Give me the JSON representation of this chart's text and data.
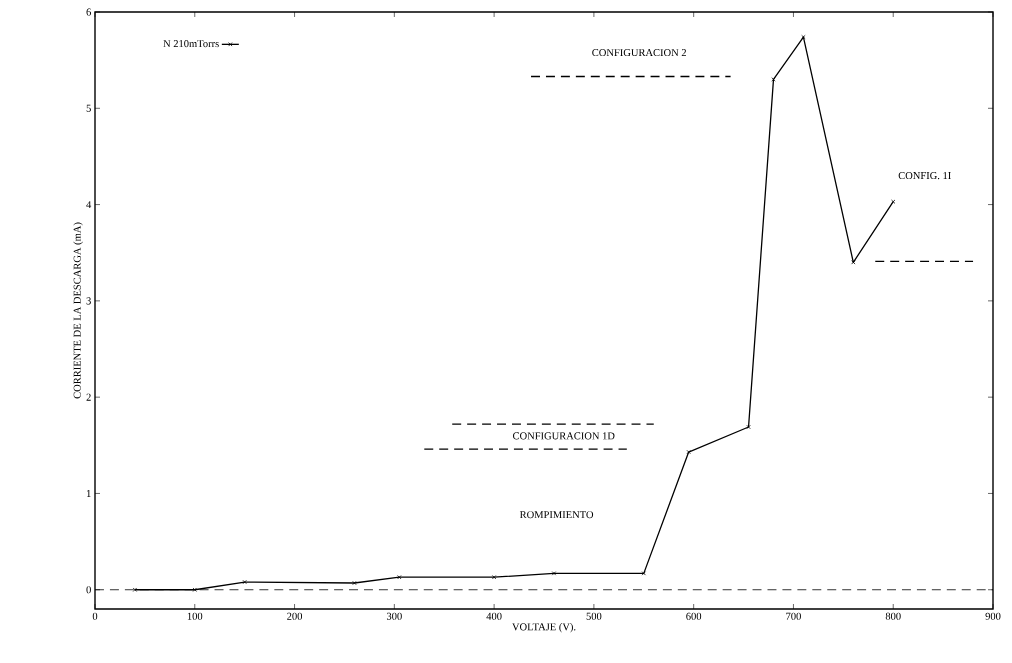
{
  "chart_data": {
    "type": "line",
    "xlabel": "VOLTAJE (V).",
    "ylabel": "CORRIENTE DE LA DESCARGA (mA)",
    "xlim": [
      0,
      900
    ],
    "ylim": [
      -0.2,
      6
    ],
    "xticks": [
      0,
      100,
      200,
      300,
      400,
      500,
      600,
      700,
      800,
      900
    ],
    "yticks": [
      0,
      1,
      2,
      3,
      4,
      5,
      6
    ],
    "legend": "top left",
    "grid": false,
    "series": [
      {
        "name": "N 210mTorrs",
        "color": "#000000",
        "marker": "cross",
        "line_style": "solid",
        "x": [
          40,
          100,
          150,
          260,
          305,
          400,
          460,
          550,
          595,
          655,
          680,
          710,
          760,
          800
        ],
        "values": [
          0,
          0,
          0.08,
          0.07,
          0.13,
          0.13,
          0.17,
          0.17,
          1.43,
          1.69,
          5.3,
          5.74,
          3.4,
          4.03
        ]
      },
      {
        "type": "line",
        "color": "#000000",
        "marker": "none",
        "line_style": "dashed",
        "x": [
          437,
          637
        ],
        "values": [
          5.33,
          5.33
        ]
      },
      {
        "type": "line",
        "color": "#000000",
        "marker": "none",
        "line_style": "dashed",
        "x": [
          358,
          560
        ],
        "values": [
          1.72,
          1.72
        ]
      },
      {
        "type": "line",
        "color": "#000000",
        "marker": "none",
        "line_style": "dashed",
        "x": [
          330,
          533
        ],
        "values": [
          1.46,
          1.46
        ]
      },
      {
        "type": "line",
        "color": "#000000",
        "marker": "none",
        "line_style": "dashed",
        "x": [
          782,
          880
        ],
        "values": [
          3.41,
          3.41
        ]
      }
    ],
    "ref_lines": [
      {
        "axis": "y",
        "value": 0,
        "color": "#000000",
        "line_style": "dashed"
      }
    ],
    "annotations": [
      "CONFIGURACION 2",
      "CONFIGURACION 1D",
      "ROMPIMIENTO",
      "CONFIG. 1I"
    ]
  }
}
